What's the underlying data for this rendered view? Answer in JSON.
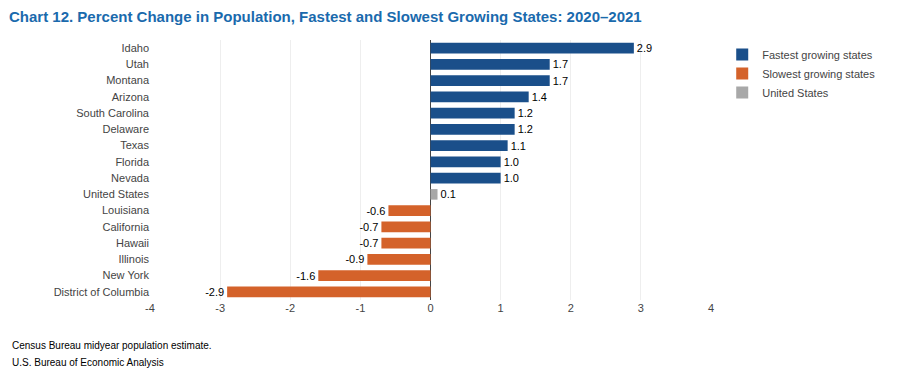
{
  "chart_data": {
    "type": "bar",
    "orientation": "horizontal",
    "title": "Chart 12. Percent Change in Population, Fastest and Slowest Growing States: 2020–2021",
    "categories": [
      "District of Columbia",
      "New York",
      "Illinois",
      "Hawaii",
      "California",
      "Louisiana",
      "United States",
      "Nevada",
      "Florida",
      "Texas",
      "Delaware",
      "South Carolina",
      "Arizona",
      "Montana",
      "Utah",
      "Idaho"
    ],
    "series": [
      {
        "name": "Fastest growing states",
        "color": "#1a4f8a",
        "values": [
          null,
          null,
          null,
          null,
          null,
          null,
          null,
          1.0,
          1.0,
          1.1,
          1.2,
          1.2,
          1.4,
          1.7,
          1.7,
          2.9
        ],
        "value_labels": [
          null,
          null,
          null,
          null,
          null,
          null,
          null,
          "1.0",
          "1.0",
          "1.1",
          "1.2",
          "1.2",
          "1.4",
          "1.7",
          "1.7",
          "2.9"
        ]
      },
      {
        "name": "Slowest growing states",
        "color": "#d4622a",
        "values": [
          -2.9,
          -1.6,
          -0.9,
          -0.7,
          -0.7,
          -0.6,
          null,
          null,
          null,
          null,
          null,
          null,
          null,
          null,
          null,
          null
        ],
        "value_labels": [
          "-2.9",
          "-1.6",
          "-0.9",
          "-0.7",
          "-0.7",
          "-0.6",
          null,
          null,
          null,
          null,
          null,
          null,
          null,
          null,
          null,
          null
        ]
      },
      {
        "name": "United States",
        "color": "#a8a8a8",
        "values": [
          null,
          null,
          null,
          null,
          null,
          null,
          0.1,
          null,
          null,
          null,
          null,
          null,
          null,
          null,
          null,
          null
        ],
        "value_labels": [
          null,
          null,
          null,
          null,
          null,
          null,
          "0.1",
          null,
          null,
          null,
          null,
          null,
          null,
          null,
          null,
          null
        ]
      }
    ],
    "xlim": [
      -4,
      4
    ],
    "xticks": [
      -4,
      -3,
      -2,
      -1,
      0,
      1,
      2,
      3,
      4
    ],
    "grid": true,
    "data_labels": true,
    "legend": "right",
    "annotations": [
      "Census Bureau midyear population estimate.",
      "U.S. Bureau of Economic Analysis"
    ],
    "title_color": "#1a6aad"
  }
}
